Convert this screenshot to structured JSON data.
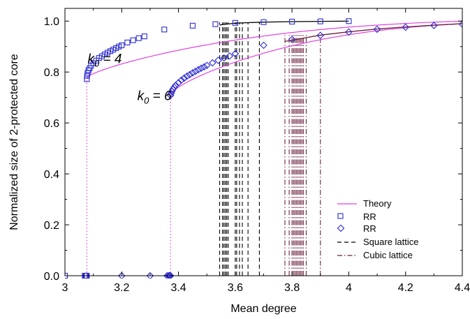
{
  "chart_data": {
    "type": "scatter",
    "xlabel": "Mean degree",
    "ylabel": "Normalized size of 2-protected core",
    "xlim": [
      3,
      4.4
    ],
    "ylim": [
      0,
      1.05
    ],
    "x_ticks": [
      3,
      3.2,
      3.4,
      3.6,
      3.8,
      4,
      4.2,
      4.4
    ],
    "x_tick_labels": [
      "3",
      "3.2",
      "3.4",
      "3.6",
      "3.8",
      "4",
      "4.2",
      "4.4"
    ],
    "y_ticks": [
      0,
      0.2,
      0.4,
      0.6,
      0.8,
      1.0
    ],
    "y_tick_labels": [
      "0.0",
      "0.2",
      "0.4",
      "0.6",
      "0.8",
      "1.0"
    ],
    "grid": false,
    "legend_position": "bottom-right",
    "annotations": [
      {
        "id": "k4",
        "prefix": "k",
        "sub": "0",
        "suffix": " = 4",
        "x": 3.08,
        "y": 0.835
      },
      {
        "id": "k6",
        "prefix": "k",
        "sub": "0",
        "suffix": " = 6",
        "x": 3.255,
        "y": 0.69
      }
    ],
    "series": [
      {
        "name": "Theory",
        "kind": "curve",
        "color": "#e040e0",
        "k0": 4,
        "x_start": 3.077,
        "x_end": 4.4,
        "y_start": 0.775,
        "y_end": 1.0
      },
      {
        "name": "Theory",
        "kind": "curve",
        "color": "#e040e0",
        "k0": 6,
        "x_start": 3.372,
        "x_end": 4.4,
        "y_start": 0.71,
        "y_end": 0.99
      },
      {
        "name": "RR",
        "kind": "points",
        "marker": "square",
        "color": "#2b2bd0",
        "x": [
          3.0,
          3.07,
          3.073,
          3.075,
          3.077,
          3.077,
          3.078,
          3.08,
          3.083,
          3.087,
          3.092,
          3.1,
          3.11,
          3.12,
          3.13,
          3.14,
          3.15,
          3.16,
          3.17,
          3.18,
          3.19,
          3.2,
          3.22,
          3.24,
          3.26,
          3.28,
          3.35,
          3.45,
          3.53,
          3.6,
          3.7,
          3.8,
          3.9,
          4.0
        ],
        "y": [
          0.0,
          0.0,
          0.0,
          0.0,
          0.0,
          0.772,
          0.785,
          0.797,
          0.807,
          0.815,
          0.825,
          0.835,
          0.845,
          0.855,
          0.862,
          0.869,
          0.876,
          0.882,
          0.888,
          0.894,
          0.9,
          0.905,
          0.916,
          0.925,
          0.933,
          0.94,
          0.967,
          0.982,
          0.988,
          0.993,
          0.996,
          0.998,
          0.999,
          1.0
        ]
      },
      {
        "name": "RR",
        "kind": "points",
        "marker": "diamond",
        "color": "#2b2bd0",
        "x": [
          3.2,
          3.3,
          3.36,
          3.365,
          3.368,
          3.37,
          3.372,
          3.372,
          3.374,
          3.377,
          3.38,
          3.385,
          3.39,
          3.4,
          3.41,
          3.42,
          3.43,
          3.44,
          3.45,
          3.46,
          3.47,
          3.48,
          3.49,
          3.5,
          3.52,
          3.54,
          3.56,
          3.58,
          3.6,
          3.7,
          3.8,
          3.9,
          4.0,
          4.1,
          4.2,
          4.3,
          4.4
        ],
        "y": [
          0.0,
          0.0,
          0.0,
          0.0,
          0.0,
          0.0,
          0.0,
          0.708,
          0.716,
          0.724,
          0.732,
          0.74,
          0.748,
          0.758,
          0.768,
          0.776,
          0.784,
          0.79,
          0.797,
          0.803,
          0.809,
          0.815,
          0.82,
          0.826,
          0.836,
          0.846,
          0.855,
          0.863,
          0.872,
          0.905,
          0.928,
          0.944,
          0.957,
          0.968,
          0.976,
          0.983,
          0.988
        ]
      },
      {
        "name": "Square lattice",
        "kind": "vlines",
        "style": "dashed",
        "color": "#000000",
        "x": [
          3.545,
          3.555,
          3.56,
          3.565,
          3.57,
          3.575,
          3.6,
          3.605,
          3.615,
          3.625,
          3.645,
          3.685
        ],
        "y_top": 0.995
      },
      {
        "name": "Square lattice",
        "kind": "step-curve",
        "color": "#000000",
        "x": [
          3.545,
          3.6,
          3.7,
          3.8,
          4.0
        ],
        "y": [
          0.985,
          0.992,
          0.996,
          0.998,
          1.0
        ]
      },
      {
        "name": "Cubic lattice",
        "kind": "vlines",
        "style": "dashdot",
        "color": "#6b1f3e",
        "x": [
          3.775,
          3.79,
          3.8,
          3.805,
          3.81,
          3.815,
          3.82,
          3.825,
          3.83,
          3.835,
          3.84,
          3.85,
          3.9
        ],
        "y_top": 0.945
      },
      {
        "name": "Cubic lattice",
        "kind": "step-curve",
        "color": "#6b1f3e",
        "x": [
          3.775,
          3.9,
          4.0,
          4.1,
          4.2,
          4.3,
          4.4
        ],
        "y": [
          0.92,
          0.945,
          0.958,
          0.969,
          0.977,
          0.984,
          0.99
        ]
      },
      {
        "name": "Theory",
        "kind": "threshold",
        "style": "dotted",
        "color": "#e040e0",
        "x": [
          3.077,
          3.372
        ]
      }
    ],
    "legend": [
      {
        "label": "Theory",
        "symbol": "line",
        "color": "#e040e0"
      },
      {
        "label": "RR",
        "symbol": "square",
        "color": "#2b2bd0"
      },
      {
        "label": "RR",
        "symbol": "diamond",
        "color": "#2b2bd0"
      },
      {
        "label": "Square lattice",
        "symbol": "dashed",
        "color": "#000000"
      },
      {
        "label": "Cubic lattice",
        "symbol": "dashdot",
        "color": "#6b1f3e"
      }
    ]
  }
}
